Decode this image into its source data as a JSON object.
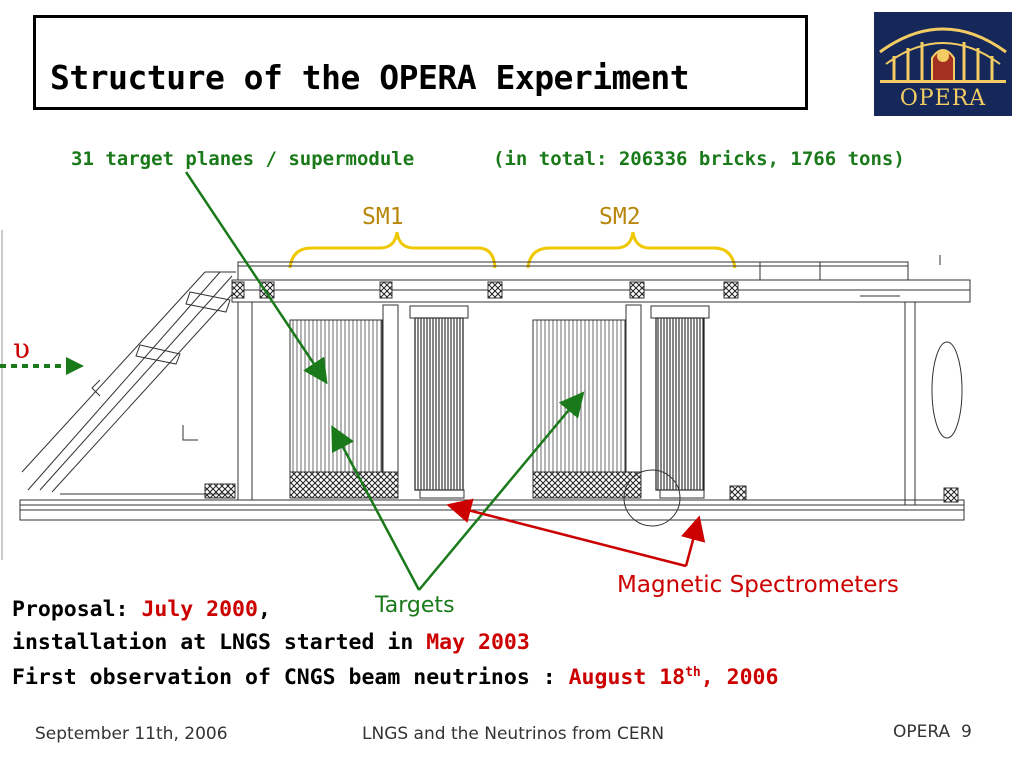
{
  "title": "Structure of the OPERA Experiment",
  "logo": {
    "text": "OPERA"
  },
  "header": {
    "planes_text": "31 target planes / supermodule",
    "total_text": "(in total: 206336 bricks, 1766 tons)"
  },
  "diagram": {
    "sm1_label": "SM1",
    "sm2_label": "SM2",
    "beam_symbol": "υ",
    "targets_label": "Targets",
    "spectrometers_label": "Magnetic Spectrometers"
  },
  "timeline": {
    "proposal_label": "Proposal:",
    "proposal_date": "July 2000",
    "proposal_suffix": ",",
    "install_label": "installation at LNGS started in",
    "install_date": "May 2003",
    "first_obs_label": "First observation of CNGS beam neutrinos :",
    "first_obs_date": "August 18",
    "first_obs_sup": "th",
    "first_obs_year": ", 2006"
  },
  "footer": {
    "date": "September 11th, 2006",
    "talk_title": "LNGS and the Neutrinos from CERN",
    "section": "OPERA",
    "page": "9"
  },
  "colors": {
    "green": "#1a7a1a",
    "red": "#cc0000",
    "gold": "#b8860b",
    "bracket": "#f0c800",
    "logo_bg": "#16285a"
  }
}
